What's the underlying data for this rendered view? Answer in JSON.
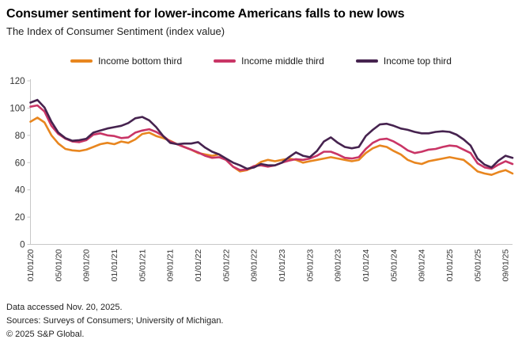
{
  "header": {
    "title": "Consumer sentiment for lower-income Americans falls to new lows",
    "subtitle": "The Index of Consumer Sentiment (index value)"
  },
  "legend": {
    "items": [
      {
        "label": "Income bottom third",
        "color": "#E8861F"
      },
      {
        "label": "Income middle third",
        "color": "#C93566"
      },
      {
        "label": "Income top third",
        "color": "#46234F"
      }
    ]
  },
  "chart_data": {
    "type": "line",
    "title": "Consumer sentiment for lower-income Americans falls to new lows",
    "subtitle": "The Index of Consumer Sentiment (index value)",
    "x_start": "01/01/20",
    "x_end": "10/01/25",
    "x_frequency": "monthly",
    "ylim": [
      0,
      120
    ],
    "yticks": [
      0,
      20,
      40,
      60,
      80,
      100,
      120
    ],
    "grid": false,
    "legend_position": "top-center",
    "axis_color": "#c8c8c8",
    "tick_label_color": "#333333",
    "x_ticks": [
      {
        "index": 0,
        "label": "01/01/20"
      },
      {
        "index": 4,
        "label": "05/01/20"
      },
      {
        "index": 8,
        "label": "09/01/20"
      },
      {
        "index": 12,
        "label": "01/01/21"
      },
      {
        "index": 16,
        "label": "05/01/21"
      },
      {
        "index": 20,
        "label": "09/01/21"
      },
      {
        "index": 24,
        "label": "01/01/22"
      },
      {
        "index": 28,
        "label": "05/01/22"
      },
      {
        "index": 32,
        "label": "09/01/22"
      },
      {
        "index": 36,
        "label": "01/01/23"
      },
      {
        "index": 40,
        "label": "05/01/23"
      },
      {
        "index": 44,
        "label": "09/01/23"
      },
      {
        "index": 48,
        "label": "01/01/24"
      },
      {
        "index": 52,
        "label": "05/01/24"
      },
      {
        "index": 56,
        "label": "09/01/24"
      },
      {
        "index": 60,
        "label": "01/01/25"
      },
      {
        "index": 64,
        "label": "05/01/25"
      },
      {
        "index": 68,
        "label": "09/01/25"
      }
    ],
    "series": [
      {
        "name": "Income bottom third",
        "color": "#E8861F",
        "values": [
          90,
          93,
          89.5,
          80,
          74,
          70,
          69,
          68.5,
          69.5,
          71.5,
          73.5,
          74.5,
          73.5,
          75.5,
          74.5,
          77,
          81,
          82,
          79.5,
          78,
          76,
          73.5,
          71.5,
          69.5,
          67,
          66,
          65,
          66,
          62,
          57,
          53.5,
          54.5,
          57,
          60.5,
          62,
          61,
          62,
          63,
          62,
          60,
          61,
          62,
          63,
          64,
          63,
          62,
          61,
          62,
          67,
          70.5,
          72.5,
          71.5,
          68.5,
          66,
          62,
          60,
          59,
          61,
          62,
          63,
          64,
          63,
          62,
          58,
          53.5,
          52,
          51,
          53,
          54.5,
          52
        ]
      },
      {
        "name": "Income middle third",
        "color": "#C93566",
        "values": [
          101,
          102,
          97.5,
          87,
          81,
          77.5,
          75.5,
          75,
          76.5,
          80.5,
          81.5,
          80,
          79.5,
          78,
          78.5,
          82,
          83.5,
          84.5,
          82.5,
          79.5,
          75.5,
          73.5,
          71.5,
          69.5,
          67.5,
          65,
          63.5,
          64,
          62,
          57,
          54.5,
          55,
          57.5,
          58,
          57,
          58,
          60,
          61.5,
          62.5,
          62,
          63,
          65,
          68,
          68,
          66,
          63.5,
          63,
          64,
          70,
          74.5,
          77,
          77.5,
          75.5,
          72.5,
          69,
          67,
          68,
          69.5,
          70,
          71.5,
          72.5,
          72,
          69.5,
          67,
          59.5,
          56.5,
          55.5,
          58.5,
          61,
          59
        ]
      },
      {
        "name": "Income top third",
        "color": "#46234F",
        "values": [
          104,
          106,
          100.5,
          90,
          82,
          78,
          76,
          76.5,
          77.5,
          82,
          83.5,
          85,
          86,
          87,
          89,
          92.5,
          93.5,
          91,
          86,
          79.5,
          74.5,
          73.5,
          74,
          74,
          75,
          71,
          68,
          66,
          63,
          60,
          58,
          55.5,
          56.5,
          59,
          58,
          58,
          60,
          64,
          67.5,
          65,
          64,
          68.5,
          75.5,
          78.5,
          74.5,
          71.5,
          70.5,
          71.5,
          79.5,
          84,
          88,
          88.5,
          87,
          85,
          84,
          82.5,
          81.5,
          81.5,
          82.5,
          83,
          82.5,
          80.5,
          77,
          72.5,
          63,
          58.5,
          56.5,
          61.5,
          65,
          63.5
        ]
      }
    ]
  },
  "footer": {
    "line1": "Data accessed Nov. 20, 2025.",
    "line2": "Sources: Surveys of Consumers; University of Michigan.",
    "line3": "© 2025 S&P Global."
  }
}
